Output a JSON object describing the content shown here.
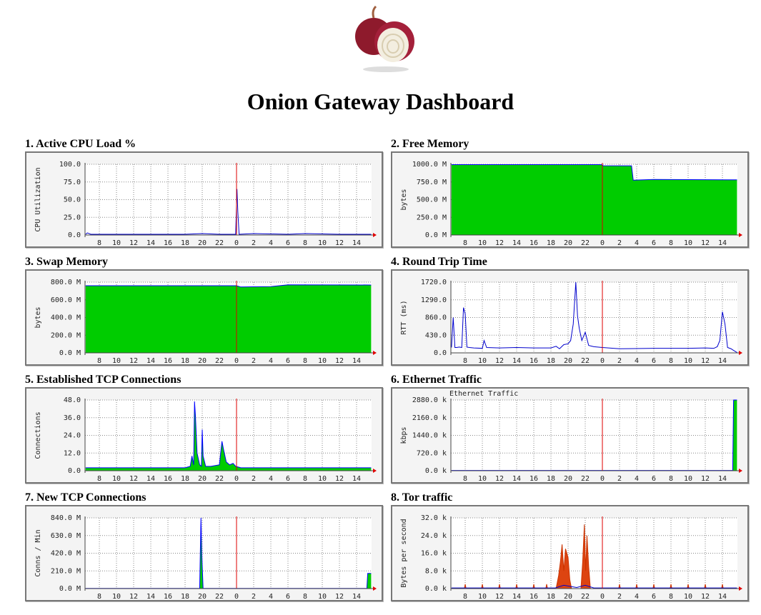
{
  "title": "Onion Gateway Dashboard",
  "chart_data": [
    {
      "type": "line",
      "title": "1. Active CPU Load %",
      "y_label": "CPU Utilization",
      "xlim": [
        6.33,
        39.75
      ],
      "xticks": [
        8,
        10,
        12,
        14,
        16,
        18,
        20,
        22,
        {
          "value": 24,
          "label": "0"
        },
        {
          "value": 26,
          "label": "2"
        },
        {
          "value": 28,
          "label": "4"
        },
        {
          "value": 30,
          "label": "6"
        },
        {
          "value": 32,
          "label": "8"
        },
        {
          "value": 34,
          "label": "10"
        },
        {
          "value": 36,
          "label": "12"
        },
        {
          "value": 38,
          "label": "14"
        }
      ],
      "ylim": [
        0,
        100
      ],
      "yticks": [
        {
          "value": 0,
          "label": "0.0"
        },
        {
          "value": 25,
          "label": "25.0"
        },
        {
          "value": 50,
          "label": "50.0"
        },
        {
          "value": 75,
          "label": "75.0"
        },
        {
          "value": 100,
          "label": "100.0"
        }
      ],
      "grid": true,
      "vline": 24,
      "series": [
        {
          "color": "#0000cc",
          "x": [
            6.4,
            6.6,
            7,
            10,
            14,
            18,
            20,
            22,
            23.9,
            24.05,
            24.15,
            24.3,
            26,
            30,
            32,
            36,
            39.7
          ],
          "values": [
            1,
            3,
            1,
            1,
            1,
            1,
            2,
            1,
            1,
            65,
            33,
            1,
            2,
            1,
            2,
            1,
            1
          ]
        }
      ]
    },
    {
      "type": "area",
      "title": "2. Free Memory",
      "y_label": "bytes",
      "xlim": [
        6.33,
        39.75
      ],
      "xticks": [
        8,
        10,
        12,
        14,
        16,
        18,
        20,
        22,
        {
          "value": 24,
          "label": "0"
        },
        {
          "value": 26,
          "label": "2"
        },
        {
          "value": 28,
          "label": "4"
        },
        {
          "value": 30,
          "label": "6"
        },
        {
          "value": 32,
          "label": "8"
        },
        {
          "value": 34,
          "label": "10"
        },
        {
          "value": 36,
          "label": "12"
        },
        {
          "value": 38,
          "label": "14"
        }
      ],
      "ylim": [
        0,
        1000
      ],
      "yticks": [
        {
          "value": 0,
          "label": "0.0 M"
        },
        {
          "value": 250,
          "label": "250.0 M"
        },
        {
          "value": 500,
          "label": "500.0 M"
        },
        {
          "value": 750,
          "label": "750.0 M"
        },
        {
          "value": 1000,
          "label": "1000.0 M"
        }
      ],
      "grid": true,
      "vline": 24,
      "series": [
        {
          "color": "#00cc00",
          "line_color": "#0000ff",
          "x": [
            6.4,
            23.9,
            24.1,
            27.4,
            27.6,
            30,
            39.7
          ],
          "values": [
            995,
            995,
            980,
            978,
            775,
            785,
            780
          ]
        }
      ]
    },
    {
      "type": "area",
      "title": "3. Swap Memory",
      "y_label": "bytes",
      "xlim": [
        6.33,
        39.75
      ],
      "xticks": [
        8,
        10,
        12,
        14,
        16,
        18,
        20,
        22,
        {
          "value": 24,
          "label": "0"
        },
        {
          "value": 26,
          "label": "2"
        },
        {
          "value": 28,
          "label": "4"
        },
        {
          "value": 30,
          "label": "6"
        },
        {
          "value": 32,
          "label": "8"
        },
        {
          "value": 34,
          "label": "10"
        },
        {
          "value": 36,
          "label": "12"
        },
        {
          "value": 38,
          "label": "14"
        }
      ],
      "ylim": [
        0,
        800
      ],
      "yticks": [
        {
          "value": 0,
          "label": "0.0 M"
        },
        {
          "value": 200,
          "label": "200.0 M"
        },
        {
          "value": 400,
          "label": "400.0 M"
        },
        {
          "value": 600,
          "label": "600.0 M"
        },
        {
          "value": 800,
          "label": "800.0 M"
        }
      ],
      "grid": true,
      "vline": 24,
      "series": [
        {
          "color": "#00cc00",
          "line_color": "#0000ff",
          "x": [
            6.4,
            24,
            24.5,
            28,
            30,
            39.7
          ],
          "values": [
            760,
            760,
            745,
            750,
            770,
            768
          ]
        }
      ]
    },
    {
      "type": "line",
      "title": "4. Round Trip Time",
      "y_label": "RTT (ms)",
      "xlim": [
        6.33,
        39.75
      ],
      "xticks": [
        8,
        10,
        12,
        14,
        16,
        18,
        20,
        22,
        {
          "value": 24,
          "label": "0"
        },
        {
          "value": 26,
          "label": "2"
        },
        {
          "value": 28,
          "label": "4"
        },
        {
          "value": 30,
          "label": "6"
        },
        {
          "value": 32,
          "label": "8"
        },
        {
          "value": 34,
          "label": "10"
        },
        {
          "value": 36,
          "label": "12"
        },
        {
          "value": 38,
          "label": "14"
        }
      ],
      "ylim": [
        0,
        1720
      ],
      "yticks": [
        {
          "value": 0,
          "label": "0.0"
        },
        {
          "value": 430,
          "label": "430.0"
        },
        {
          "value": 860,
          "label": "860.0"
        },
        {
          "value": 1290,
          "label": "1290.0"
        },
        {
          "value": 1720,
          "label": "1720.0"
        }
      ],
      "grid": true,
      "vline": 24,
      "series": [
        {
          "color": "#0000cc",
          "x": [
            6.4,
            6.6,
            6.8,
            7,
            7.3,
            7.6,
            7.8,
            8,
            8.2,
            8.5,
            9,
            10,
            10.2,
            10.5,
            12,
            14,
            16,
            18,
            18.6,
            19,
            19.5,
            20,
            20.3,
            20.6,
            20.9,
            21.1,
            21.3,
            21.6,
            22,
            22.4,
            23,
            24,
            26,
            30,
            34,
            36,
            37,
            37.4,
            37.7,
            38,
            38.3,
            38.6,
            39,
            39.3,
            39.7
          ],
          "values": [
            130,
            860,
            130,
            130,
            140,
            130,
            1100,
            950,
            140,
            130,
            120,
            110,
            300,
            130,
            120,
            130,
            120,
            120,
            160,
            100,
            200,
            220,
            300,
            700,
            1720,
            900,
            600,
            300,
            500,
            180,
            150,
            130,
            100,
            110,
            110,
            120,
            110,
            150,
            300,
            1000,
            700,
            130,
            100,
            60,
            10
          ]
        }
      ]
    },
    {
      "type": "area",
      "title": "5. Established TCP Connections",
      "y_label": "Connections",
      "xlim": [
        6.33,
        39.75
      ],
      "xticks": [
        8,
        10,
        12,
        14,
        16,
        18,
        20,
        22,
        {
          "value": 24,
          "label": "0"
        },
        {
          "value": 26,
          "label": "2"
        },
        {
          "value": 28,
          "label": "4"
        },
        {
          "value": 30,
          "label": "6"
        },
        {
          "value": 32,
          "label": "8"
        },
        {
          "value": 34,
          "label": "10"
        },
        {
          "value": 36,
          "label": "12"
        },
        {
          "value": 38,
          "label": "14"
        }
      ],
      "ylim": [
        0,
        48
      ],
      "yticks": [
        {
          "value": 0,
          "label": "0.0"
        },
        {
          "value": 12,
          "label": "12.0"
        },
        {
          "value": 24,
          "label": "24.0"
        },
        {
          "value": 36,
          "label": "36.0"
        },
        {
          "value": 48,
          "label": "48.0"
        }
      ],
      "grid": true,
      "vline": 24,
      "series": [
        {
          "color": "#00cc00",
          "line_color": "#0000ff",
          "x": [
            6.4,
            12,
            18,
            18.6,
            18.8,
            19,
            19.1,
            19.2,
            19.4,
            19.7,
            19.9,
            20,
            20.1,
            20.4,
            21,
            22,
            22.3,
            22.5,
            22.8,
            23.2,
            23.6,
            23.9,
            24.5,
            30,
            36,
            39.7
          ],
          "values": [
            2,
            2,
            2,
            3,
            10,
            4,
            47,
            38,
            12,
            4,
            3,
            28,
            10,
            3,
            3,
            4,
            20,
            14,
            6,
            4,
            5,
            3,
            2,
            2,
            2,
            2
          ]
        }
      ]
    },
    {
      "type": "area",
      "title": "6. Ethernet Traffic",
      "y_label": "kbps",
      "xlim": [
        6.33,
        39.75
      ],
      "xticks": [
        8,
        10,
        12,
        14,
        16,
        18,
        20,
        22,
        {
          "value": 24,
          "label": "0"
        },
        {
          "value": 26,
          "label": "2"
        },
        {
          "value": 28,
          "label": "4"
        },
        {
          "value": 30,
          "label": "6"
        },
        {
          "value": 32,
          "label": "8"
        },
        {
          "value": 34,
          "label": "10"
        },
        {
          "value": 36,
          "label": "12"
        },
        {
          "value": 38,
          "label": "14"
        }
      ],
      "ylim": [
        0,
        2880
      ],
      "yticks": [
        {
          "value": 0,
          "label": "0.0 k"
        },
        {
          "value": 720,
          "label": "720.0 k"
        },
        {
          "value": 1440,
          "label": "1440.0 k"
        },
        {
          "value": 2160,
          "label": "2160.0 k"
        },
        {
          "value": 2880,
          "label": "2880.0 k"
        }
      ],
      "grid": true,
      "vline": 24,
      "series": [
        {
          "name": "Ethernet Traffic",
          "color": "#00cc00",
          "line_color": "#0000ff",
          "x": [
            6.4,
            39.2,
            39.3,
            39.7
          ],
          "values": [
            10,
            10,
            2880,
            2880
          ]
        }
      ]
    },
    {
      "type": "area",
      "title": "7. New TCP Connections",
      "y_label": "Conns / Min",
      "xlim": [
        6.33,
        39.75
      ],
      "xticks": [
        8,
        10,
        12,
        14,
        16,
        18,
        20,
        22,
        {
          "value": 24,
          "label": "0"
        },
        {
          "value": 26,
          "label": "2"
        },
        {
          "value": 28,
          "label": "4"
        },
        {
          "value": 30,
          "label": "6"
        },
        {
          "value": 32,
          "label": "8"
        },
        {
          "value": 34,
          "label": "10"
        },
        {
          "value": 36,
          "label": "12"
        },
        {
          "value": 38,
          "label": "14"
        }
      ],
      "ylim": [
        0,
        840
      ],
      "yticks": [
        {
          "value": 0,
          "label": "0.0 M"
        },
        {
          "value": 210,
          "label": "210.0 M"
        },
        {
          "value": 420,
          "label": "420.0 M"
        },
        {
          "value": 630,
          "label": "630.0 M"
        },
        {
          "value": 840,
          "label": "840.0 M"
        }
      ],
      "grid": true,
      "vline": 24,
      "series": [
        {
          "color": "#00cc00",
          "line_color": "#0000ff",
          "x": [
            6.4,
            19.7,
            19.85,
            19.95,
            20.1,
            39.2,
            39.3,
            39.7
          ],
          "values": [
            2,
            2,
            840,
            400,
            2,
            2,
            180,
            180
          ]
        }
      ]
    },
    {
      "type": "area",
      "title": "8. Tor traffic",
      "y_label": "Bytes per second",
      "xlim": [
        6.33,
        39.75
      ],
      "xticks": [
        8,
        10,
        12,
        14,
        16,
        18,
        20,
        22,
        {
          "value": 24,
          "label": "0"
        },
        {
          "value": 26,
          "label": "2"
        },
        {
          "value": 28,
          "label": "4"
        },
        {
          "value": 30,
          "label": "6"
        },
        {
          "value": 32,
          "label": "8"
        },
        {
          "value": 34,
          "label": "10"
        },
        {
          "value": 36,
          "label": "12"
        },
        {
          "value": 38,
          "label": "14"
        }
      ],
      "ylim": [
        0,
        32
      ],
      "yticks": [
        {
          "value": 0,
          "label": "0.0 k"
        },
        {
          "value": 8,
          "label": "8.0 k"
        },
        {
          "value": 16,
          "label": "16.0 k"
        },
        {
          "value": 24,
          "label": "24.0 k"
        },
        {
          "value": 32,
          "label": "32.0 k"
        }
      ],
      "grid": true,
      "vline": 24,
      "series": [
        {
          "color": "#dd4411",
          "line_color": "#cc3300",
          "x": [
            6.4,
            7.9,
            8,
            8.1,
            9.9,
            10,
            10.1,
            11.9,
            12,
            12.1,
            13.9,
            14,
            14.1,
            15.9,
            16,
            16.1,
            17.4,
            17.5,
            17.6,
            18.6,
            18.9,
            19.1,
            19.3,
            19.5,
            19.7,
            20,
            20.2,
            20.4,
            21.5,
            21.7,
            21.9,
            22.05,
            22.2,
            22.4,
            22.6,
            23,
            25.9,
            26,
            26.1,
            27.9,
            28,
            28.1,
            29.9,
            30,
            30.1,
            31.9,
            32,
            32.1,
            33.9,
            34,
            34.1,
            35.9,
            36,
            36.1,
            37.9,
            38,
            38.1,
            39.7
          ],
          "values": [
            0,
            0,
            2,
            0,
            0,
            2,
            0,
            0,
            2,
            0,
            0,
            2,
            0,
            0,
            2,
            0,
            0,
            2,
            0,
            0,
            6,
            12,
            20,
            8,
            18,
            14,
            4,
            0,
            0,
            12,
            29,
            8,
            24,
            10,
            0,
            0,
            0,
            2,
            0,
            0,
            2,
            0,
            0,
            2,
            0,
            0,
            2,
            0,
            0,
            2,
            0,
            0,
            2,
            0,
            0,
            2,
            0,
            0
          ]
        },
        {
          "color": "#0000cc",
          "x": [
            6.4,
            18.5,
            19.5,
            21,
            22,
            23,
            39.7
          ],
          "values": [
            0.3,
            0.3,
            1.5,
            0.5,
            1.5,
            0.3,
            0.3
          ]
        }
      ]
    }
  ]
}
